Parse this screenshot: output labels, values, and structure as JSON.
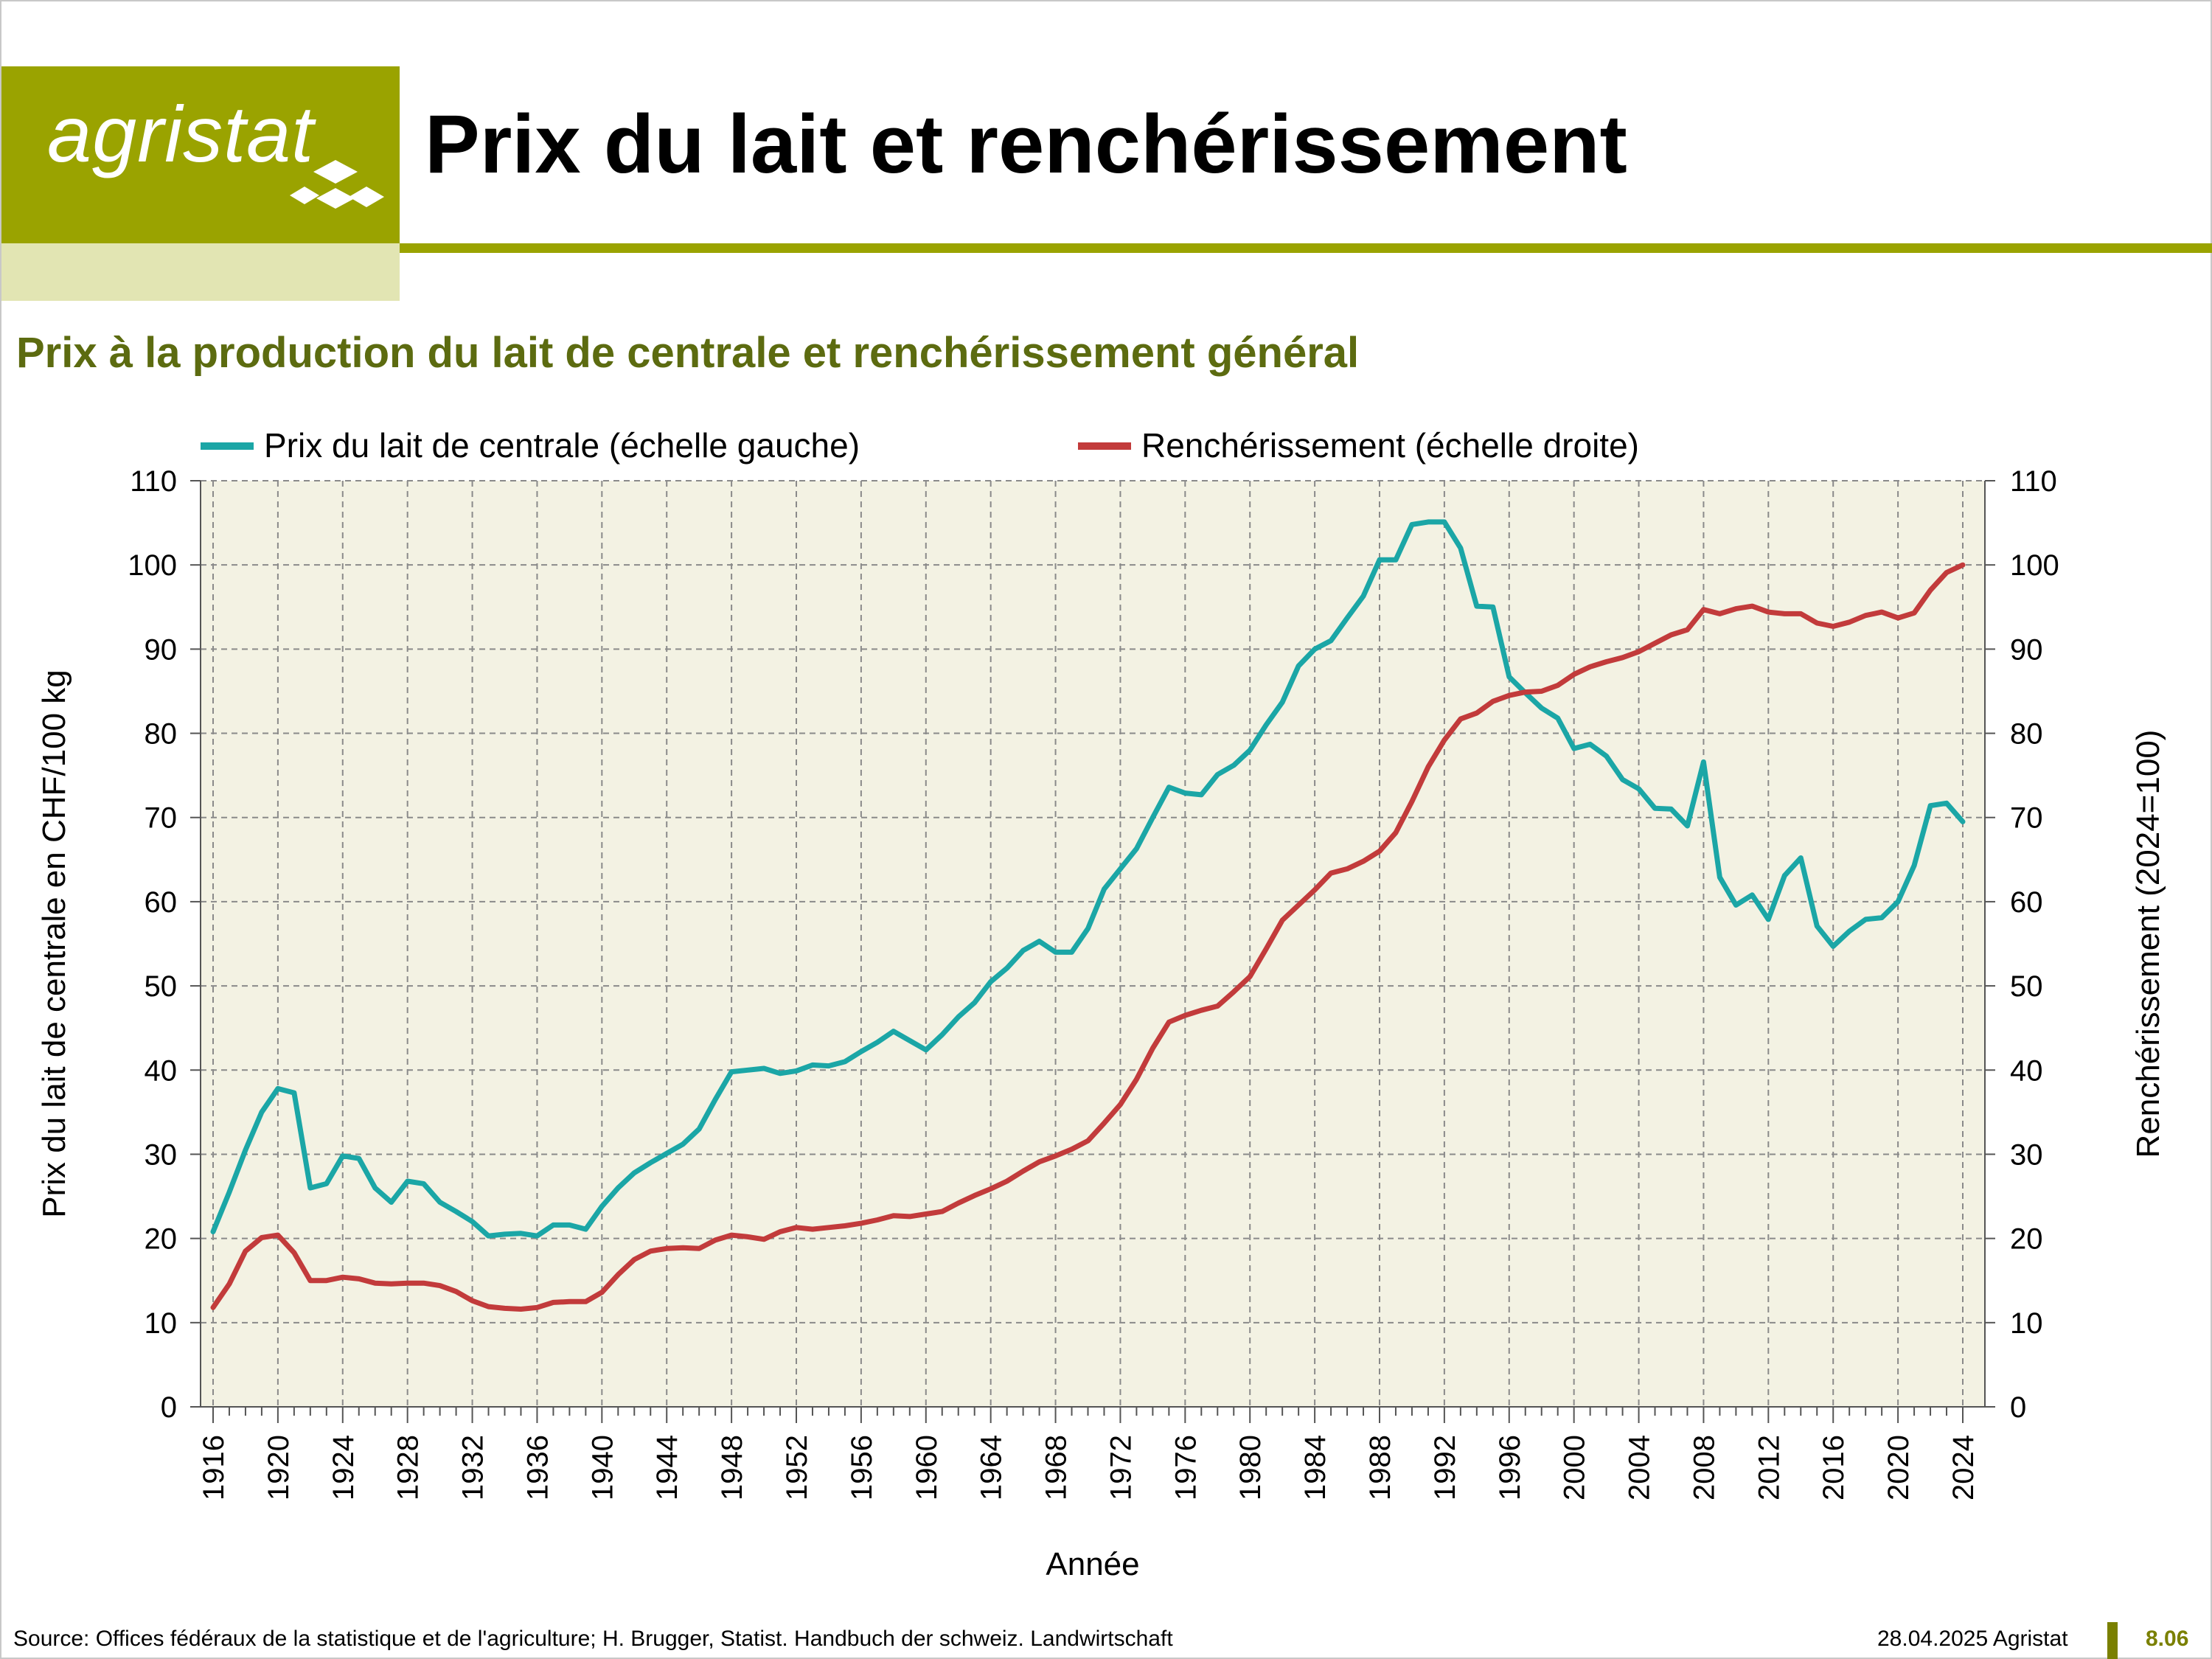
{
  "header": {
    "logo_text": "agristat",
    "title": "Prix du lait et renchérissement"
  },
  "subtitle": "Prix à la production du lait de centrale et renchérissement général",
  "footer": {
    "source": "Source: Offices fédéraux de la statistique et de l'agriculture; H. Brugger, Statist. Handbuch der schweiz. Landwirtschaft",
    "date": "28.04.2025 Agristat",
    "page": "8.06"
  },
  "colors": {
    "brand": "#9aa300",
    "plot_bg": "#f3f2e3",
    "milk": "#1ba6a6",
    "inflation": "#c23b3b"
  },
  "chart_data": {
    "type": "line",
    "xlabel": "Année",
    "ylabel_left": "Prix du lait de centrale en CHF/100 kg",
    "ylabel_right": "Renchérissement (2024=100)",
    "ylim_left": [
      0,
      110
    ],
    "ylim_right": [
      0,
      110
    ],
    "y_ticks": [
      0,
      10,
      20,
      30,
      40,
      50,
      60,
      70,
      80,
      90,
      100,
      110
    ],
    "x_ticks": [
      1916,
      1920,
      1924,
      1928,
      1932,
      1936,
      1940,
      1944,
      1948,
      1952,
      1956,
      1960,
      1964,
      1968,
      1972,
      1976,
      1980,
      1984,
      1988,
      1992,
      1996,
      2000,
      2004,
      2008,
      2012,
      2016,
      2020,
      2024
    ],
    "xlim": [
      1916,
      2024
    ],
    "grid": true,
    "legend_placement": "top",
    "x": [
      1916,
      1917,
      1918,
      1919,
      1920,
      1921,
      1922,
      1923,
      1924,
      1925,
      1926,
      1927,
      1928,
      1929,
      1930,
      1931,
      1932,
      1933,
      1934,
      1935,
      1936,
      1937,
      1938,
      1939,
      1940,
      1941,
      1942,
      1943,
      1944,
      1945,
      1946,
      1947,
      1948,
      1949,
      1950,
      1951,
      1952,
      1953,
      1954,
      1955,
      1956,
      1957,
      1958,
      1959,
      1960,
      1961,
      1962,
      1963,
      1964,
      1965,
      1966,
      1967,
      1968,
      1969,
      1970,
      1971,
      1972,
      1973,
      1974,
      1975,
      1976,
      1977,
      1978,
      1979,
      1980,
      1981,
      1982,
      1983,
      1984,
      1985,
      1986,
      1987,
      1988,
      1989,
      1990,
      1991,
      1992,
      1993,
      1994,
      1995,
      1996,
      1997,
      1998,
      1999,
      2000,
      2001,
      2002,
      2003,
      2004,
      2005,
      2006,
      2007,
      2008,
      2009,
      2010,
      2011,
      2012,
      2013,
      2014,
      2015,
      2016,
      2017,
      2018,
      2019,
      2020,
      2021,
      2022,
      2023,
      2024
    ],
    "series": [
      {
        "name": "Prix du lait de centrale (échelle gauche)",
        "axis": "left",
        "color": "#1ba6a6",
        "values": [
          20.8,
          25.5,
          30.5,
          35.0,
          37.8,
          37.3,
          26.0,
          26.5,
          29.8,
          29.5,
          26.0,
          24.3,
          26.8,
          26.5,
          24.3,
          23.2,
          22.0,
          20.3,
          20.5,
          20.6,
          20.3,
          21.6,
          21.6,
          21.1,
          23.8,
          26.0,
          27.8,
          29.0,
          30.1,
          31.2,
          33.0,
          36.5,
          39.8,
          40.0,
          40.2,
          39.6,
          39.9,
          40.6,
          40.5,
          41.0,
          42.2,
          43.3,
          44.6,
          43.5,
          42.4,
          44.2,
          46.3,
          48.0,
          50.5,
          52.1,
          54.2,
          55.3,
          54.0,
          54.0,
          56.8,
          61.5,
          63.9,
          66.3,
          70.0,
          73.6,
          72.9,
          72.7,
          75.1,
          76.2,
          78.0,
          81.0,
          83.7,
          88.0,
          90.0,
          91.0,
          93.7,
          96.3,
          100.6,
          100.6,
          104.8,
          105.1,
          105.1,
          102.0,
          95.1,
          95.0,
          86.7,
          84.8,
          83.0,
          81.8,
          78.2,
          78.7,
          77.3,
          74.5,
          73.4,
          71.1,
          71.0,
          69.0,
          76.6,
          62.9,
          59.6,
          60.8,
          57.9,
          63.1,
          65.2,
          57.1,
          54.7,
          56.5,
          57.9,
          58.1,
          60.0,
          64.3,
          71.4,
          71.7,
          69.5
        ]
      },
      {
        "name": "Renchérissement (échelle droite)",
        "axis": "right",
        "color": "#c23b3b",
        "values": [
          11.8,
          14.6,
          18.5,
          20.1,
          20.4,
          18.3,
          15.0,
          15.0,
          15.4,
          15.2,
          14.7,
          14.6,
          14.7,
          14.7,
          14.4,
          13.7,
          12.6,
          11.9,
          11.7,
          11.6,
          11.8,
          12.4,
          12.5,
          12.5,
          13.6,
          15.7,
          17.5,
          18.5,
          18.8,
          18.9,
          18.8,
          19.8,
          20.4,
          20.2,
          19.9,
          20.8,
          21.3,
          21.1,
          21.3,
          21.5,
          21.8,
          22.2,
          22.7,
          22.6,
          22.9,
          23.2,
          24.2,
          25.1,
          25.9,
          26.8,
          28.0,
          29.1,
          29.8,
          30.6,
          31.6,
          33.7,
          35.9,
          38.9,
          42.6,
          45.7,
          46.5,
          47.1,
          47.6,
          49.3,
          51.1,
          54.4,
          57.8,
          59.6,
          61.4,
          63.4,
          63.9,
          64.8,
          66.0,
          68.2,
          71.9,
          76.0,
          79.2,
          81.7,
          82.4,
          83.8,
          84.5,
          84.9,
          85.0,
          85.7,
          87.0,
          87.9,
          88.5,
          89.0,
          89.7,
          90.7,
          91.7,
          92.3,
          94.7,
          94.2,
          94.8,
          95.1,
          94.4,
          94.2,
          94.2,
          93.1,
          92.7,
          93.2,
          94.0,
          94.4,
          93.7,
          94.3,
          97.0,
          99.1,
          100.0
        ]
      }
    ]
  }
}
